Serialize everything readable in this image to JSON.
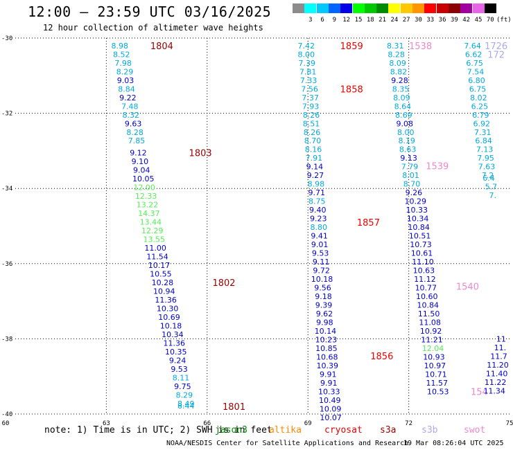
{
  "header": {
    "title": "12:00 – 23:59 UTC 03/16/2025",
    "subtitle": "12 hour collection of altimeter wave heights"
  },
  "colorbar": {
    "units": "(ft)",
    "entries": [
      {
        "label": "",
        "color": "#8c8c8c"
      },
      {
        "label": "3",
        "color": "#00ffff"
      },
      {
        "label": "6",
        "color": "#00c8ff"
      },
      {
        "label": "9",
        "color": "#0064ff"
      },
      {
        "label": "12",
        "color": "#0000e6"
      },
      {
        "label": "15",
        "color": "#00ff00"
      },
      {
        "label": "18",
        "color": "#00c800"
      },
      {
        "label": "21",
        "color": "#008c00"
      },
      {
        "label": "24",
        "color": "#ffff00"
      },
      {
        "label": "27",
        "color": "#ffc800"
      },
      {
        "label": "30",
        "color": "#ff9600"
      },
      {
        "label": "33",
        "color": "#ff0000"
      },
      {
        "label": "36",
        "color": "#c80000"
      },
      {
        "label": "39",
        "color": "#8c0000"
      },
      {
        "label": "42",
        "color": "#a000a0"
      },
      {
        "label": "45",
        "color": "#e664e6"
      },
      {
        "label": "70",
        "color": "#000000"
      }
    ]
  },
  "axes": {
    "lat_labels": [
      "-30",
      "-32",
      "-34",
      "-36",
      "-38",
      "-40"
    ],
    "lon_labels": [
      "60",
      "63",
      "66",
      "69",
      "72",
      "75"
    ],
    "lat_range": [
      -40,
      -30
    ],
    "lon_range": [
      60,
      75
    ]
  },
  "colors": {
    "cyan": "#00aadd",
    "blue": "#0000cc",
    "green": "#55ee55",
    "red": "#ee0000",
    "darkred": "#990000",
    "pink": "#ee88cc",
    "lavender": "#aaaaee"
  },
  "tracks": [
    {
      "labels": [
        {
          "text": "1804",
          "color": "darkred",
          "lon": 64.65,
          "lat": -30.2
        }
      ],
      "points": [
        [
          "8.98",
          "cyan",
          63.4,
          -30.2
        ],
        [
          "8.52",
          "cyan",
          63.45,
          -30.43
        ],
        [
          "7.98",
          "cyan",
          63.5,
          -30.66
        ],
        [
          "8.29",
          "cyan",
          63.55,
          -30.89
        ],
        [
          "9.03",
          "blue",
          63.57,
          -31.12
        ],
        [
          "8.84",
          "cyan",
          63.6,
          -31.35
        ],
        [
          "9.22",
          "blue",
          63.64,
          -31.58
        ],
        [
          "7.48",
          "cyan",
          63.7,
          -31.81
        ],
        [
          "8.32",
          "cyan",
          63.73,
          -32.04
        ],
        [
          "9.63",
          "blue",
          63.8,
          -32.27
        ],
        [
          "8.28",
          "cyan",
          63.85,
          -32.5
        ],
        [
          "7.85",
          "cyan",
          63.9,
          -32.73
        ],
        [
          "9.12",
          "blue",
          63.95,
          -33.05
        ],
        [
          "9.10",
          "blue",
          64.0,
          -33.28
        ],
        [
          "9.04",
          "blue",
          64.05,
          -33.51
        ],
        [
          "10.05",
          "blue",
          64.1,
          -33.74
        ],
        [
          "12.00",
          "green",
          64.13,
          -33.97
        ],
        [
          "12.33",
          "green",
          64.18,
          -34.2
        ],
        [
          "13.22",
          "green",
          64.22,
          -34.43
        ],
        [
          "14.37",
          "green",
          64.27,
          -34.66
        ],
        [
          "13.44",
          "green",
          64.32,
          -34.89
        ],
        [
          "12.29",
          "green",
          64.37,
          -35.12
        ],
        [
          "13.55",
          "green",
          64.42,
          -35.35
        ],
        [
          "11.00",
          "blue",
          64.46,
          -35.58
        ],
        [
          "11.54",
          "blue",
          64.52,
          -35.81
        ],
        [
          "10.17",
          "blue",
          64.57,
          -36.04
        ],
        [
          "10.55",
          "blue",
          64.62,
          -36.27
        ],
        [
          "10.28",
          "blue",
          64.67,
          -36.5
        ],
        [
          "10.94",
          "blue",
          64.72,
          -36.73
        ],
        [
          "11.36",
          "blue",
          64.77,
          -36.96
        ],
        [
          "10.30",
          "blue",
          64.82,
          -37.19
        ],
        [
          "10.69",
          "blue",
          64.87,
          -37.42
        ],
        [
          "10.18",
          "blue",
          64.92,
          -37.65
        ],
        [
          "10.34",
          "blue",
          64.97,
          -37.88
        ],
        [
          "11.36",
          "blue",
          65.02,
          -38.11
        ],
        [
          "10.35",
          "blue",
          65.07,
          -38.34
        ],
        [
          "9.24",
          "blue",
          65.12,
          -38.57
        ],
        [
          "9.53",
          "blue",
          65.17,
          -38.8
        ],
        [
          "8.11",
          "cyan",
          65.22,
          -39.03
        ],
        [
          "9.75",
          "blue",
          65.27,
          -39.26
        ],
        [
          "8.29",
          "cyan",
          65.32,
          -39.49
        ],
        [
          "8.49",
          "cyan",
          65.37,
          -39.72
        ],
        [
          "8.44",
          "cyan",
          65.37,
          -39.78
        ]
      ],
      "extra_labels": [
        {
          "text": "1803",
          "color": "darkred",
          "lon": 65.8,
          "lat": -33.05
        },
        {
          "text": "1802",
          "color": "darkred",
          "lon": 66.5,
          "lat": -36.5
        },
        {
          "text": "1801",
          "color": "darkred",
          "lon": 66.8,
          "lat": -39.8
        }
      ]
    },
    {
      "labels": [
        {
          "text": "1859",
          "color": "red",
          "lon": 70.3,
          "lat": -30.2
        },
        {
          "text": "1858",
          "color": "red",
          "lon": 70.3,
          "lat": -31.35
        },
        {
          "text": "1857",
          "color": "red",
          "lon": 70.8,
          "lat": -34.9
        },
        {
          "text": "1856",
          "color": "red",
          "lon": 71.2,
          "lat": -38.45
        }
      ],
      "points": [
        [
          "7.42",
          "cyan",
          68.95,
          -30.2
        ],
        [
          "8.00",
          "cyan",
          68.95,
          -30.43
        ],
        [
          "7.39",
          "cyan",
          68.97,
          -30.66
        ],
        [
          "7.81",
          "cyan",
          69.0,
          -30.89
        ],
        [
          "7.33",
          "cyan",
          69.02,
          -31.12
        ],
        [
          "7.56",
          "cyan",
          69.05,
          -31.35
        ],
        [
          "7.37",
          "cyan",
          69.07,
          -31.58
        ],
        [
          "7.93",
          "cyan",
          69.08,
          -31.81
        ],
        [
          "8.26",
          "cyan",
          69.1,
          -32.04
        ],
        [
          "8.51",
          "cyan",
          69.1,
          -32.27
        ],
        [
          "8.26",
          "cyan",
          69.12,
          -32.5
        ],
        [
          "8.70",
          "cyan",
          69.14,
          -32.73
        ],
        [
          "8.16",
          "cyan",
          69.16,
          -32.96
        ],
        [
          "7.91",
          "cyan",
          69.18,
          -33.19
        ],
        [
          "9.14",
          "blue",
          69.2,
          -33.42
        ],
        [
          "9.27",
          "blue",
          69.22,
          -33.65
        ],
        [
          "8.98",
          "cyan",
          69.24,
          -33.88
        ],
        [
          "9.71",
          "blue",
          69.26,
          -34.11
        ],
        [
          "8.75",
          "cyan",
          69.27,
          -34.34
        ],
        [
          "9.40",
          "blue",
          69.29,
          -34.57
        ],
        [
          "9.23",
          "blue",
          69.31,
          -34.8
        ],
        [
          "8.80",
          "cyan",
          69.32,
          -35.03
        ],
        [
          "9.41",
          "blue",
          69.34,
          -35.26
        ],
        [
          "9.01",
          "blue",
          69.35,
          -35.49
        ],
        [
          "9.53",
          "blue",
          69.37,
          -35.72
        ],
        [
          "9.11",
          "blue",
          69.39,
          -35.95
        ],
        [
          "9.72",
          "blue",
          69.4,
          -36.18
        ],
        [
          "10.18",
          "blue",
          69.42,
          -36.41
        ],
        [
          "9.56",
          "blue",
          69.44,
          -36.64
        ],
        [
          "9.18",
          "blue",
          69.46,
          -36.87
        ],
        [
          "9.39",
          "blue",
          69.47,
          -37.1
        ],
        [
          "9.62",
          "blue",
          69.49,
          -37.33
        ],
        [
          "9.98",
          "blue",
          69.5,
          -37.56
        ],
        [
          "10.14",
          "blue",
          69.52,
          -37.79
        ],
        [
          "10.23",
          "blue",
          69.54,
          -38.02
        ],
        [
          "10.85",
          "blue",
          69.55,
          -38.25
        ],
        [
          "10.68",
          "blue",
          69.57,
          -38.48
        ],
        [
          "10.39",
          "blue",
          69.58,
          -38.71
        ],
        [
          "9.91",
          "blue",
          69.6,
          -38.94
        ],
        [
          "9.91",
          "blue",
          69.62,
          -39.17
        ],
        [
          "10.33",
          "blue",
          69.63,
          -39.4
        ],
        [
          "10.49",
          "blue",
          69.65,
          -39.63
        ],
        [
          "10.09",
          "blue",
          69.67,
          -39.86
        ],
        [
          "10.07",
          "blue",
          69.68,
          -40.09
        ]
      ]
    },
    {
      "labels": [
        {
          "text": "1538",
          "color": "pink",
          "lon": 72.35,
          "lat": -30.2
        },
        {
          "text": "1539",
          "color": "pink",
          "lon": 72.85,
          "lat": -33.4
        },
        {
          "text": "1540",
          "color": "pink",
          "lon": 73.75,
          "lat": -36.6
        }
      ],
      "points": [
        [
          "8.31",
          "cyan",
          71.6,
          -30.2
        ],
        [
          "8.28",
          "cyan",
          71.63,
          -30.43
        ],
        [
          "8.09",
          "cyan",
          71.67,
          -30.66
        ],
        [
          "8.82",
          "cyan",
          71.7,
          -30.89
        ],
        [
          "9.28",
          "blue",
          71.73,
          -31.12
        ],
        [
          "8.35",
          "cyan",
          71.76,
          -31.35
        ],
        [
          "8.09",
          "cyan",
          71.79,
          -31.58
        ],
        [
          "8.64",
          "cyan",
          71.82,
          -31.81
        ],
        [
          "8.69",
          "cyan",
          71.85,
          -32.04
        ],
        [
          "9.08",
          "blue",
          71.88,
          -32.27
        ],
        [
          "8.00",
          "cyan",
          71.91,
          -32.5
        ],
        [
          "8.19",
          "cyan",
          71.94,
          -32.73
        ],
        [
          "8.63",
          "cyan",
          71.97,
          -32.96
        ],
        [
          "9.13",
          "blue",
          72.0,
          -33.19
        ],
        [
          "7.79",
          "cyan",
          72.03,
          -33.42
        ],
        [
          "8.01",
          "cyan",
          72.06,
          -33.65
        ],
        [
          "8.70",
          "cyan",
          72.09,
          -33.88
        ],
        [
          "9.26",
          "blue",
          72.15,
          -34.11
        ],
        [
          "10.29",
          "blue",
          72.2,
          -34.34
        ],
        [
          "10.33",
          "blue",
          72.24,
          -34.57
        ],
        [
          "10.34",
          "blue",
          72.27,
          -34.8
        ],
        [
          "10.84",
          "blue",
          72.3,
          -35.03
        ],
        [
          "10.51",
          "blue",
          72.33,
          -35.26
        ],
        [
          "10.73",
          "blue",
          72.36,
          -35.49
        ],
        [
          "10.61",
          "blue",
          72.39,
          -35.72
        ],
        [
          "11.10",
          "blue",
          72.42,
          -35.95
        ],
        [
          "10.63",
          "blue",
          72.45,
          -36.18
        ],
        [
          "11.12",
          "blue",
          72.48,
          -36.41
        ],
        [
          "10.77",
          "blue",
          72.51,
          -36.64
        ],
        [
          "10.60",
          "blue",
          72.54,
          -36.87
        ],
        [
          "10.84",
          "blue",
          72.57,
          -37.1
        ],
        [
          "11.50",
          "blue",
          72.6,
          -37.33
        ],
        [
          "11.08",
          "blue",
          72.63,
          -37.56
        ],
        [
          "10.92",
          "blue",
          72.66,
          -37.79
        ],
        [
          "11.21",
          "blue",
          72.69,
          -38.02
        ],
        [
          "12.04",
          "green",
          72.72,
          -38.25
        ],
        [
          "10.93",
          "blue",
          72.75,
          -38.48
        ],
        [
          "10.97",
          "blue",
          72.78,
          -38.71
        ],
        [
          "10.71",
          "blue",
          72.81,
          -38.94
        ],
        [
          "11.57",
          "blue",
          72.84,
          -39.17
        ],
        [
          "10.53",
          "blue",
          72.87,
          -39.4
        ]
      ],
      "extra_labels": [
        {
          "text": "154",
          "color": "pink",
          "lon": 74.1,
          "lat": -39.4
        }
      ]
    },
    {
      "labels": [
        {
          "text": "1726",
          "color": "lavender",
          "lon": 74.6,
          "lat": -30.2
        },
        {
          "text": "172",
          "color": "lavender",
          "lon": 74.6,
          "lat": -30.43
        }
      ],
      "points": [
        [
          "7.64",
          "cyan",
          73.9,
          -30.2
        ],
        [
          "6.62",
          "cyan",
          73.93,
          -30.43
        ],
        [
          "6.75",
          "cyan",
          73.96,
          -30.66
        ],
        [
          "7.54",
          "cyan",
          73.99,
          -30.89
        ],
        [
          "6.80",
          "cyan",
          74.02,
          -31.12
        ],
        [
          "6.75",
          "cyan",
          74.05,
          -31.35
        ],
        [
          "8.02",
          "cyan",
          74.08,
          -31.58
        ],
        [
          "6.25",
          "cyan",
          74.11,
          -31.81
        ],
        [
          "6.79",
          "cyan",
          74.14,
          -32.04
        ],
        [
          "6.92",
          "cyan",
          74.17,
          -32.27
        ],
        [
          "7.31",
          "cyan",
          74.2,
          -32.5
        ],
        [
          "6.84",
          "cyan",
          74.23,
          -32.73
        ],
        [
          "7.13",
          "cyan",
          74.26,
          -32.96
        ],
        [
          "7.95",
          "cyan",
          74.29,
          -33.19
        ],
        [
          "7.63",
          "cyan",
          74.32,
          -33.42
        ],
        [
          "7.2",
          "cyan",
          74.35,
          -33.65
        ],
        [
          "6.4",
          "cyan",
          74.38,
          -33.72
        ],
        [
          "5.7",
          "cyan",
          74.45,
          -33.95
        ],
        [
          "7.",
          "cyan",
          74.5,
          -34.18
        ],
        [
          "",
          "cyan",
          74.55,
          -34.41
        ],
        [
          "11",
          "blue",
          74.75,
          -38.0
        ],
        [
          "11.",
          "blue",
          74.72,
          -38.23
        ],
        [
          "11.7",
          "blue",
          74.68,
          -38.46
        ],
        [
          "11.20",
          "blue",
          74.65,
          -38.69
        ],
        [
          "11.40",
          "blue",
          74.62,
          -38.92
        ],
        [
          "11.22",
          "blue",
          74.58,
          -39.15
        ],
        [
          "11.34",
          "blue",
          74.55,
          -39.38
        ]
      ]
    }
  ],
  "note": "note: 1) Time is in UTC; 2) SWH is in feet",
  "legend": [
    {
      "text": "jason3",
      "color": "#008800"
    },
    {
      "text": "altika",
      "color": "#ff8800"
    },
    {
      "text": "cryosat",
      "color": "#ee0000"
    },
    {
      "text": "s3a",
      "color": "#990000"
    },
    {
      "text": "s3b",
      "color": "#aaaaee"
    },
    {
      "text": "swot",
      "color": "#ee88cc"
    }
  ],
  "footer": {
    "credit": "NOAA/NESDIS Center for Satellite Applications and Research",
    "timestamp": "19 Mar 08:26:04 UTC 2025"
  }
}
